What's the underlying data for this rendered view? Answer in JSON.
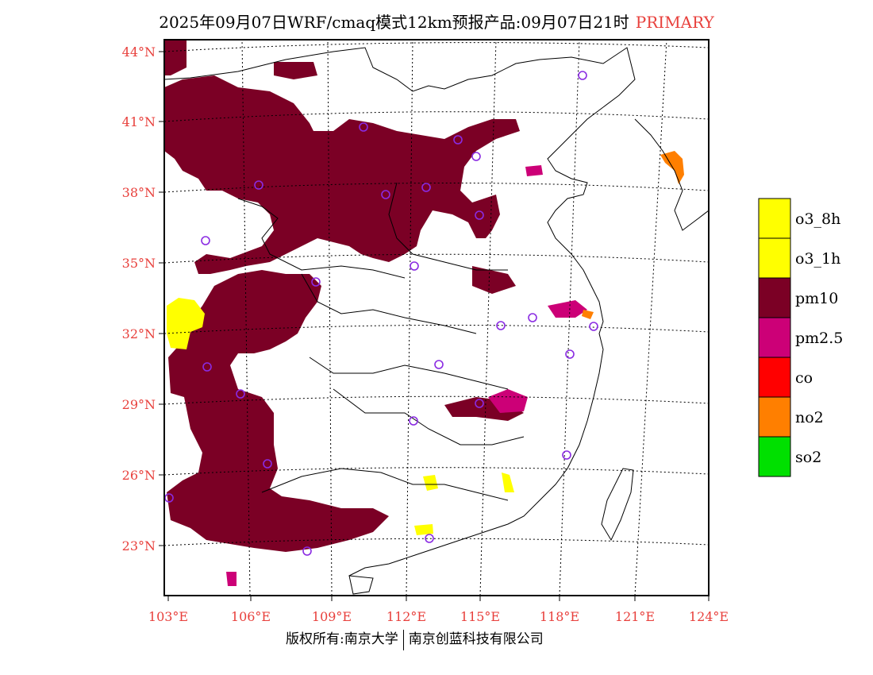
{
  "title": {
    "main": "2025年09月07日WRF/cmaq模式12km预报产品:09月07日21时",
    "tag": "PRIMARY"
  },
  "axes": {
    "lat_labels": [
      "44°N",
      "41°N",
      "38°N",
      "35°N",
      "32°N",
      "29°N",
      "26°N",
      "23°N"
    ],
    "lon_labels": [
      "103°E",
      "106°E",
      "109°E",
      "112°E",
      "115°E",
      "118°E",
      "121°E",
      "124°E"
    ],
    "label_color": "#e8403c"
  },
  "legend": [
    {
      "label": "o3_8h",
      "color": "#ffff00"
    },
    {
      "label": "o3_1h",
      "color": "#ffff00"
    },
    {
      "label": "pm10",
      "color": "#7b0025"
    },
    {
      "label": "pm2.5",
      "color": "#cc0077"
    },
    {
      "label": "co",
      "color": "#ff0000"
    },
    {
      "label": "no2",
      "color": "#ff7f00"
    },
    {
      "label": "so2",
      "color": "#00e000"
    }
  ],
  "credits": {
    "left": "版权所有:南京大学",
    "right": "南京创蓝科技有限公司"
  },
  "colors": {
    "pm10": "#7b0025",
    "pm25": "#cc0077",
    "o3": "#ffff00",
    "no2": "#ff7f00",
    "station": "#8a2be2"
  }
}
